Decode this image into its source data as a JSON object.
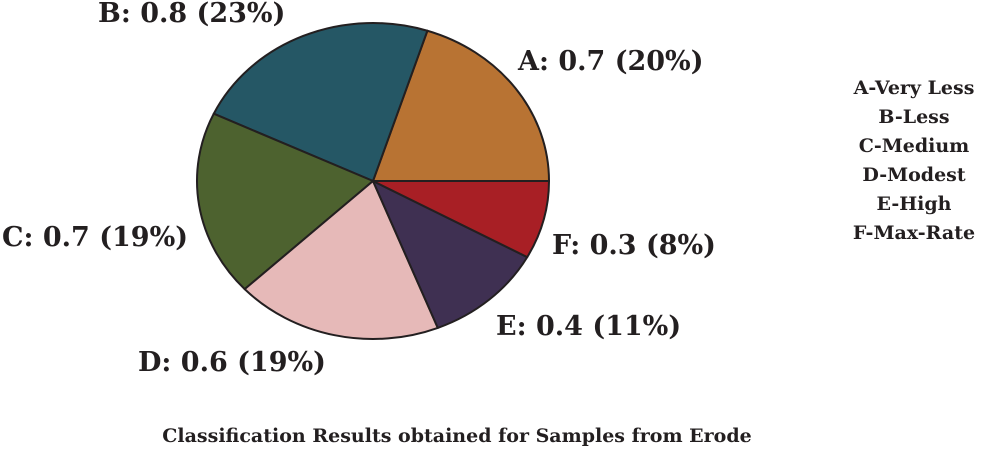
{
  "chart_data": {
    "type": "pie",
    "title": "Classification Results obtained for Samples from Erode",
    "slices": [
      {
        "key": "A",
        "value": 0.7,
        "label": "A: 0.7 (20%)",
        "color": "#b87333"
      },
      {
        "key": "B",
        "value": 0.8,
        "label": "B: 0.8 (23%)",
        "color": "#255765"
      },
      {
        "key": "C",
        "value": 0.7,
        "label": "C: 0.7 (19%)",
        "color": "#4d622f"
      },
      {
        "key": "D",
        "value": 0.6,
        "label": "D: 0.6 (19%)",
        "color": "#e6b9b8"
      },
      {
        "key": "E",
        "value": 0.4,
        "label": "E: 0.4 (11%)",
        "color": "#3f3052"
      },
      {
        "key": "F",
        "value": 0.3,
        "label": "F: 0.3 (8%)",
        "color": "#a81f25"
      }
    ],
    "legend": [
      "A-Very Less",
      "B-Less",
      "C-Medium",
      "D-Modest",
      "E-High",
      "F-Max-Rate"
    ]
  }
}
